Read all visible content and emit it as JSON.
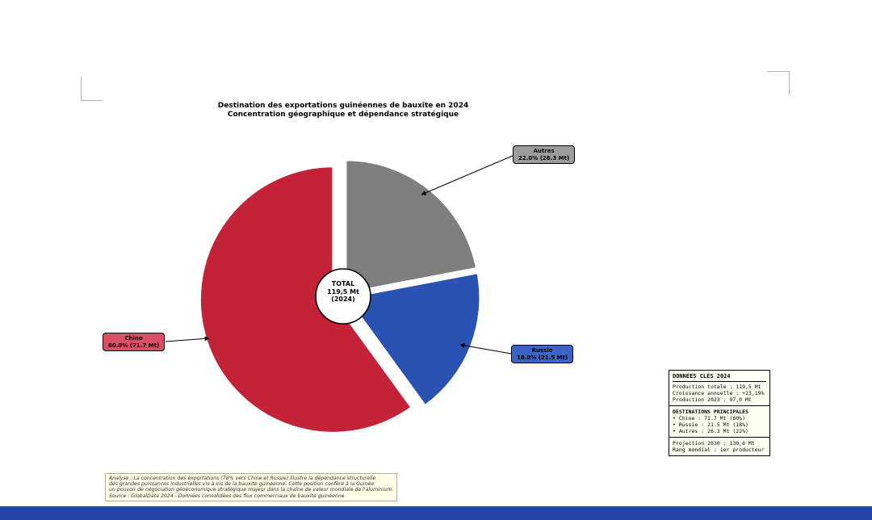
{
  "chart_data": {
    "type": "pie",
    "title": "Destination des exportations guinéennes de bauxite en 2024",
    "subtitle": "Concentration géographique et dépendance stratégique",
    "start_angle": 90,
    "counterclock": true,
    "donut": true,
    "units": "Mt",
    "center": {
      "title": "TOTAL",
      "value": "119,5 Mt",
      "year": "(2024)"
    },
    "slices": [
      {
        "name": "chine",
        "label": "Chine",
        "pct": 60.0,
        "value_mt": 71.7,
        "color": "#C42239",
        "box_color": "#D95064",
        "explode": 13,
        "callout": "60.0% (71.7 Mt)"
      },
      {
        "name": "russie",
        "label": "Russie",
        "pct": 18.0,
        "value_mt": 21.5,
        "color": "#2952B3",
        "box_color": "#3D63C6",
        "explode": 5,
        "callout": "18.0% (21.5 Mt)"
      },
      {
        "name": "autres",
        "label": "Autres",
        "pct": 22.0,
        "value_mt": 26.3,
        "color": "#7F7F7F",
        "box_color": "#9C9C9C",
        "explode": 5,
        "callout": "22.0% (26.3 Mt)"
      }
    ]
  },
  "info_box": {
    "title": "DONNÉES CLÉS 2024",
    "stats": [
      "Production totale : 119,5 Mt",
      "Croissance annuelle : +23,19%",
      "Production 2023 : 97,0 Mt"
    ],
    "destinations_title": "DESTINATIONS PRINCIPALES",
    "destinations": [
      "• Chine : 71.7 Mt (60%)",
      "• Russie : 21.5 Mt (18%)",
      "• Autres : 26.3 Mt (22%)"
    ],
    "footer": [
      "Projection 2030 : 130,6 Mt",
      "Rang mondial : 1er producteur"
    ]
  },
  "analysis_box": {
    "lines": [
      "Analyse : La concentration des exportations (78% vers Chine et Russie) illustre la dépendance structurelle",
      "des grandes puissances industrielles vis-à-vis de la bauxite guinéenne. Cette position confère à la Guinée",
      "un pouvoir de négociation géoéconomique stratégique majeur dans la chaîne de valeur mondiale de l'aluminium.",
      "Source : GlobalData 2024 - Données consolidées des flux commerciaux de bauxite guinéenne"
    ]
  },
  "colors": {
    "footer_bar": "#2244A8",
    "info_box_bg": "#FFFFF4",
    "analysis_box_bg": "#FFFDE7",
    "slice_edge": "#FFFFFF",
    "donut_hole": "#FFFFFF"
  }
}
